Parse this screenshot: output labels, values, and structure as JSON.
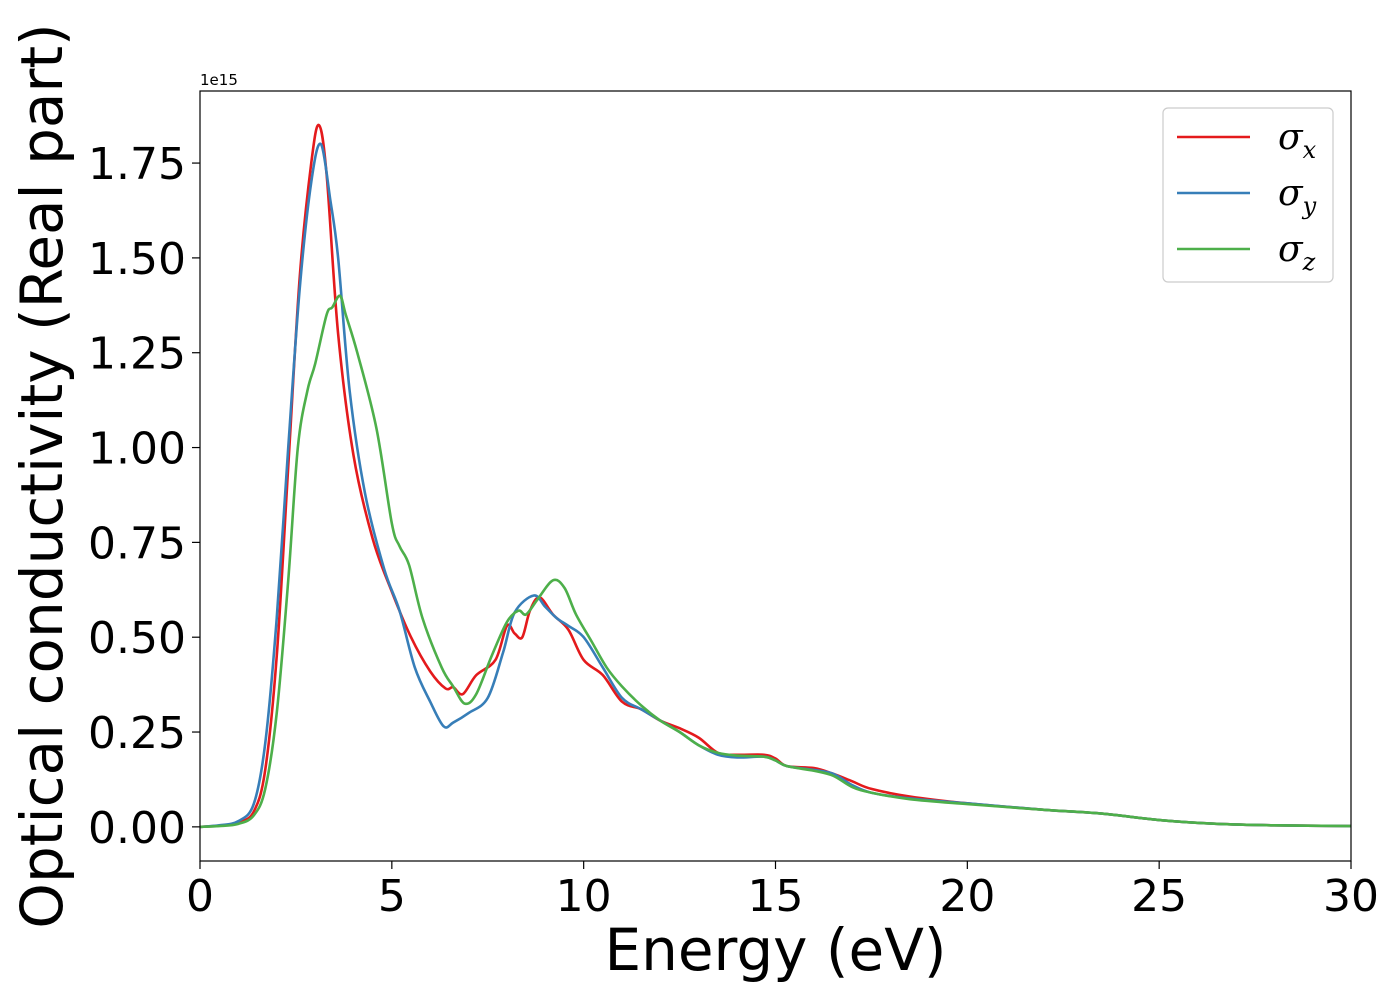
{
  "chart_data": {
    "type": "line",
    "title": "",
    "xlabel": "Energy (eV)",
    "ylabel": "Optical conductivity (Real part)",
    "y_offset_label": "1e15",
    "xlim": [
      0,
      30
    ],
    "ylim": [
      -0.09,
      1.94
    ],
    "xticks": [
      0,
      5,
      10,
      15,
      20,
      25,
      30
    ],
    "xtick_labels": [
      "0",
      "5",
      "10",
      "15",
      "20",
      "25",
      "30"
    ],
    "yticks": [
      0,
      0.25,
      0.5,
      0.75,
      1.0,
      1.25,
      1.5,
      1.75
    ],
    "ytick_labels": [
      "0.00",
      "0.25",
      "0.50",
      "0.75",
      "1.00",
      "1.25",
      "1.50",
      "1.75"
    ],
    "grid": false,
    "legend_position": "upper right",
    "series": [
      {
        "name": "σx",
        "symbol": "σ",
        "subscript": "x",
        "color": "#e41a1c",
        "points": [
          [
            0,
            0
          ],
          [
            0.5,
            0.003
          ],
          [
            1,
            0.012
          ],
          [
            1.4,
            0.04
          ],
          [
            1.7,
            0.15
          ],
          [
            2.0,
            0.45
          ],
          [
            2.3,
            0.95
          ],
          [
            2.6,
            1.45
          ],
          [
            2.9,
            1.75
          ],
          [
            3.1,
            1.85
          ],
          [
            3.3,
            1.72
          ],
          [
            3.6,
            1.3
          ],
          [
            4.0,
            0.98
          ],
          [
            4.5,
            0.76
          ],
          [
            5.0,
            0.62
          ],
          [
            5.5,
            0.5
          ],
          [
            6.0,
            0.41
          ],
          [
            6.4,
            0.365
          ],
          [
            6.6,
            0.368
          ],
          [
            6.85,
            0.35
          ],
          [
            7.2,
            0.4
          ],
          [
            7.7,
            0.44
          ],
          [
            8.0,
            0.53
          ],
          [
            8.2,
            0.51
          ],
          [
            8.4,
            0.5
          ],
          [
            8.6,
            0.57
          ],
          [
            8.85,
            0.605
          ],
          [
            9.2,
            0.56
          ],
          [
            9.6,
            0.52
          ],
          [
            10.0,
            0.44
          ],
          [
            10.5,
            0.4
          ],
          [
            11.0,
            0.33
          ],
          [
            11.5,
            0.31
          ],
          [
            12.0,
            0.28
          ],
          [
            12.5,
            0.26
          ],
          [
            13.0,
            0.235
          ],
          [
            13.5,
            0.195
          ],
          [
            14.0,
            0.19
          ],
          [
            14.7,
            0.19
          ],
          [
            15.0,
            0.18
          ],
          [
            15.3,
            0.16
          ],
          [
            16.0,
            0.155
          ],
          [
            16.5,
            0.14
          ],
          [
            17.0,
            0.12
          ],
          [
            17.5,
            0.1
          ],
          [
            18.5,
            0.08
          ],
          [
            20,
            0.062
          ],
          [
            22,
            0.045
          ],
          [
            23.5,
            0.035
          ],
          [
            25,
            0.018
          ],
          [
            26.5,
            0.008
          ],
          [
            28,
            0.004
          ],
          [
            30,
            0.002
          ]
        ]
      },
      {
        "name": "σy",
        "symbol": "σ",
        "subscript": "y",
        "color": "#377eb8",
        "points": [
          [
            0,
            0
          ],
          [
            0.5,
            0.004
          ],
          [
            1,
            0.015
          ],
          [
            1.4,
            0.06
          ],
          [
            1.7,
            0.22
          ],
          [
            2.0,
            0.55
          ],
          [
            2.3,
            1.0
          ],
          [
            2.6,
            1.42
          ],
          [
            2.9,
            1.7
          ],
          [
            3.15,
            1.8
          ],
          [
            3.4,
            1.65
          ],
          [
            3.6,
            1.5
          ],
          [
            3.9,
            1.15
          ],
          [
            4.3,
            0.88
          ],
          [
            4.8,
            0.68
          ],
          [
            5.2,
            0.57
          ],
          [
            5.6,
            0.42
          ],
          [
            6.0,
            0.33
          ],
          [
            6.35,
            0.265
          ],
          [
            6.6,
            0.275
          ],
          [
            7.0,
            0.3
          ],
          [
            7.5,
            0.34
          ],
          [
            7.9,
            0.46
          ],
          [
            8.2,
            0.565
          ],
          [
            8.7,
            0.61
          ],
          [
            9.0,
            0.58
          ],
          [
            9.3,
            0.55
          ],
          [
            9.6,
            0.53
          ],
          [
            10.0,
            0.5
          ],
          [
            10.5,
            0.42
          ],
          [
            11.0,
            0.34
          ],
          [
            11.5,
            0.31
          ],
          [
            12.0,
            0.28
          ],
          [
            12.5,
            0.25
          ],
          [
            13.0,
            0.215
          ],
          [
            13.5,
            0.19
          ],
          [
            14.0,
            0.183
          ],
          [
            14.7,
            0.185
          ],
          [
            15.0,
            0.175
          ],
          [
            15.3,
            0.16
          ],
          [
            16.0,
            0.15
          ],
          [
            16.5,
            0.14
          ],
          [
            17.0,
            0.11
          ],
          [
            17.5,
            0.09
          ],
          [
            18.5,
            0.075
          ],
          [
            20,
            0.062
          ],
          [
            22,
            0.045
          ],
          [
            23.5,
            0.035
          ],
          [
            25,
            0.018
          ],
          [
            26.5,
            0.008
          ],
          [
            28,
            0.004
          ],
          [
            30,
            0.002
          ]
        ]
      },
      {
        "name": "σz",
        "symbol": "σ",
        "subscript": "z",
        "color": "#4daf4a",
        "points": [
          [
            0,
            0
          ],
          [
            0.5,
            0.002
          ],
          [
            1,
            0.008
          ],
          [
            1.4,
            0.03
          ],
          [
            1.7,
            0.1
          ],
          [
            2.0,
            0.3
          ],
          [
            2.3,
            0.65
          ],
          [
            2.55,
            1.0
          ],
          [
            2.8,
            1.15
          ],
          [
            3.0,
            1.22
          ],
          [
            3.3,
            1.35
          ],
          [
            3.45,
            1.37
          ],
          [
            3.65,
            1.4
          ],
          [
            3.8,
            1.35
          ],
          [
            4.1,
            1.25
          ],
          [
            4.6,
            1.05
          ],
          [
            5.0,
            0.8
          ],
          [
            5.2,
            0.74
          ],
          [
            5.45,
            0.69
          ],
          [
            5.8,
            0.55
          ],
          [
            6.3,
            0.42
          ],
          [
            6.6,
            0.37
          ],
          [
            6.9,
            0.325
          ],
          [
            7.2,
            0.35
          ],
          [
            7.6,
            0.45
          ],
          [
            8.0,
            0.54
          ],
          [
            8.3,
            0.57
          ],
          [
            8.5,
            0.56
          ],
          [
            8.8,
            0.6
          ],
          [
            9.2,
            0.65
          ],
          [
            9.5,
            0.63
          ],
          [
            9.8,
            0.56
          ],
          [
            10.2,
            0.49
          ],
          [
            10.6,
            0.42
          ],
          [
            11.0,
            0.37
          ],
          [
            11.5,
            0.32
          ],
          [
            12.0,
            0.28
          ],
          [
            12.5,
            0.25
          ],
          [
            13.0,
            0.215
          ],
          [
            13.5,
            0.195
          ],
          [
            14.0,
            0.188
          ],
          [
            14.7,
            0.185
          ],
          [
            15.0,
            0.175
          ],
          [
            15.3,
            0.16
          ],
          [
            16.0,
            0.148
          ],
          [
            16.5,
            0.135
          ],
          [
            17.0,
            0.105
          ],
          [
            17.5,
            0.09
          ],
          [
            18.5,
            0.073
          ],
          [
            20,
            0.06
          ],
          [
            22,
            0.045
          ],
          [
            23.5,
            0.035
          ],
          [
            25,
            0.018
          ],
          [
            26.5,
            0.008
          ],
          [
            28,
            0.004
          ],
          [
            30,
            0.002
          ]
        ]
      }
    ]
  }
}
